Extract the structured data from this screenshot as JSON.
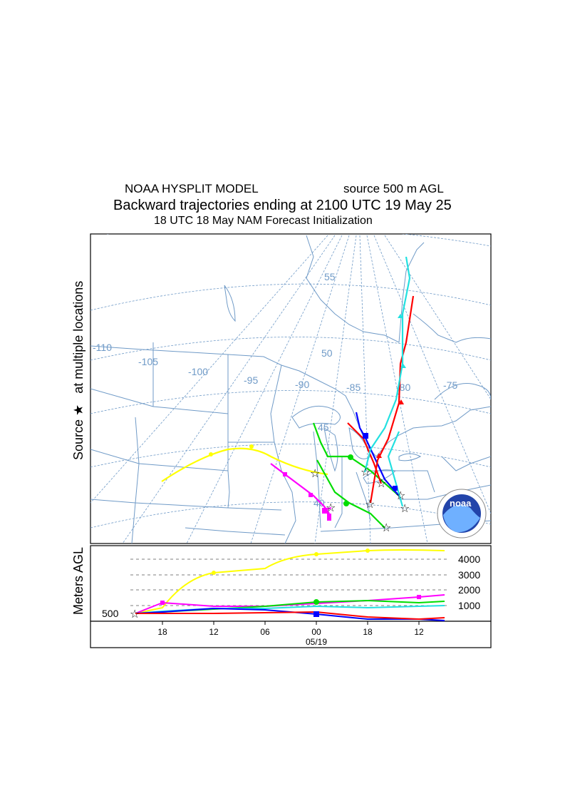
{
  "header": {
    "model": "NOAA HYSPLIT MODEL",
    "source": "source 500 m AGL",
    "title": "Backward trajectories ending at 2100 UTC 19 May 25",
    "subtitle": "18 UTC 18 May     NAM   Forecast Initialization"
  },
  "map": {
    "side_label_source": "Source",
    "side_label_rest": "at multiple locations",
    "lat_labels": [
      "55",
      "50",
      "45",
      "40"
    ],
    "lon_labels": [
      "-110",
      "-105",
      "-100",
      "-95",
      "-90",
      "-85",
      "-80",
      "-75"
    ]
  },
  "height_panel": {
    "ylabel": "Meters AGL",
    "start_label": "500",
    "levels": [
      "4000",
      "3000",
      "2000",
      "1000"
    ],
    "time_ticks": [
      "18",
      "12",
      "06",
      "00",
      "18",
      "12"
    ],
    "date_label": "05/19"
  },
  "logo": {
    "text": "noaa"
  },
  "colors": {
    "red": "#ff0000",
    "blue": "#0000ff",
    "green": "#00dd00",
    "cyan": "#22e0e0",
    "magenta": "#ff00ff",
    "yellow": "#ffff00",
    "map_lines": "#6f9ac7"
  }
}
